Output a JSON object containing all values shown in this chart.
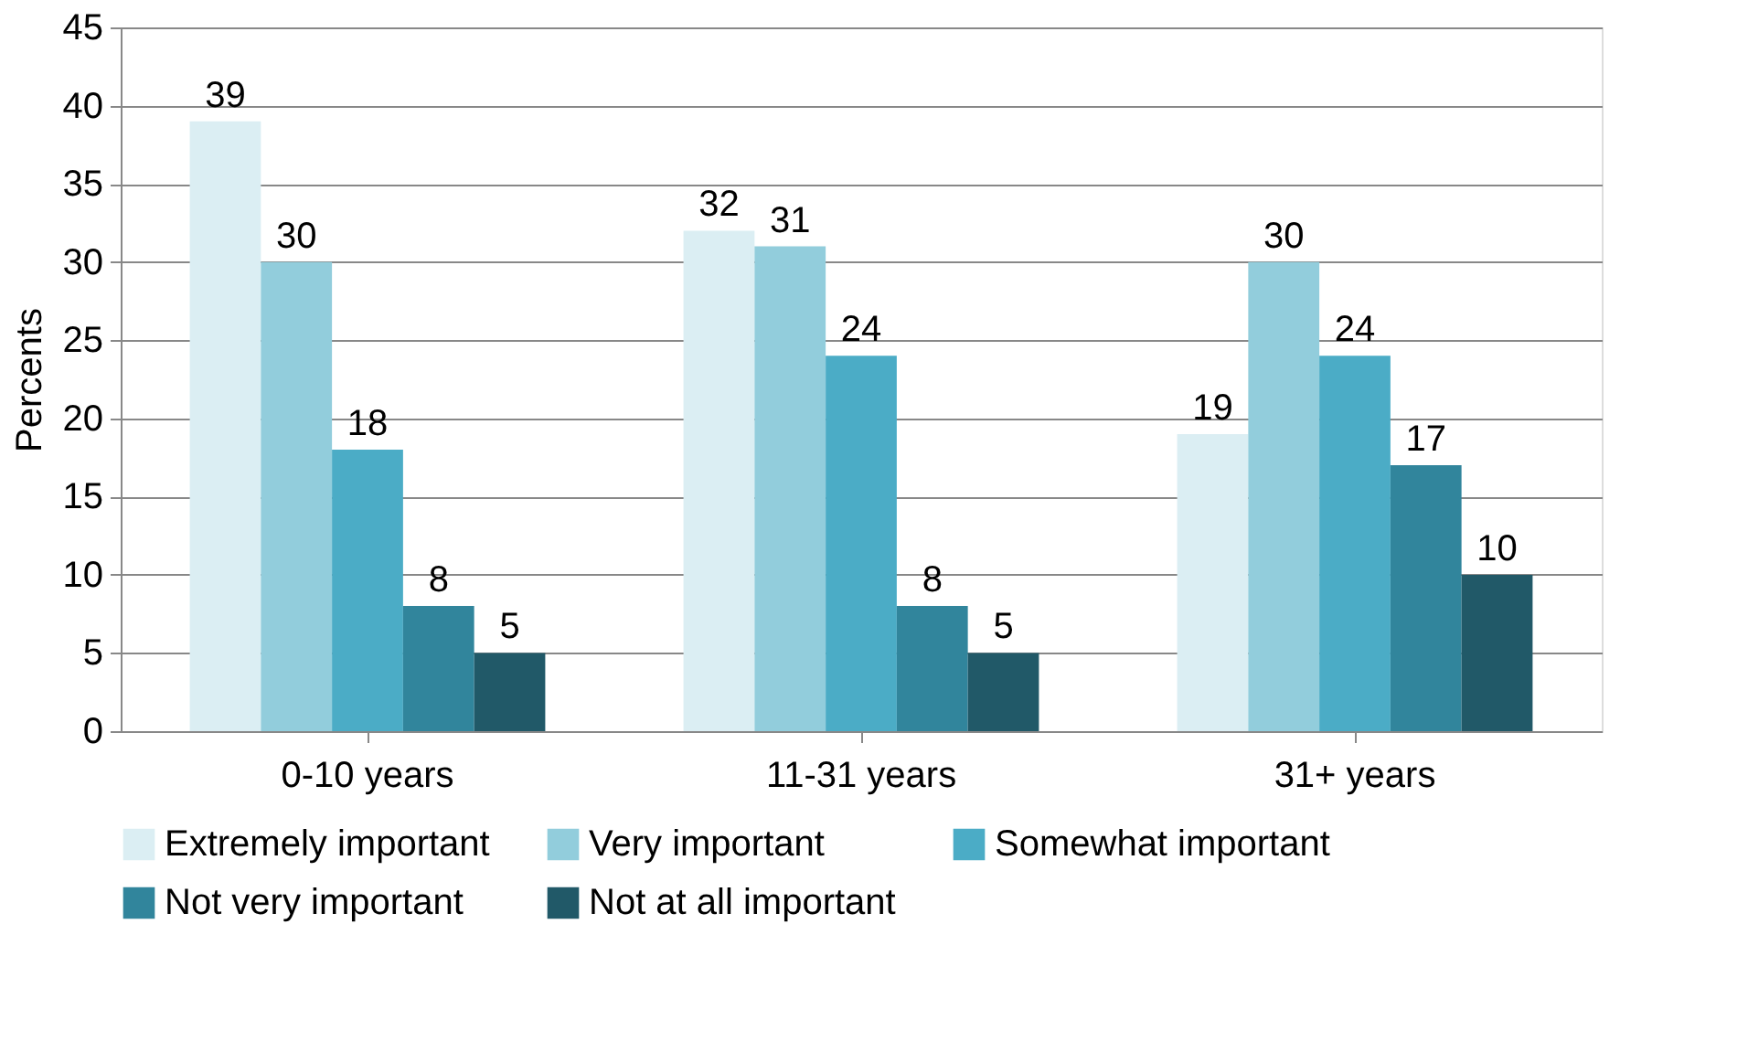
{
  "chart_data": {
    "type": "bar",
    "ylabel": "Percents",
    "categories": [
      "0-10 years",
      "11-31 years",
      "31+ years"
    ],
    "series": [
      {
        "name": "Extremely important",
        "color": "#dbeef3",
        "values": [
          39,
          32,
          19
        ]
      },
      {
        "name": "Very important",
        "color": "#92cddc",
        "values": [
          30,
          31,
          30
        ]
      },
      {
        "name": "Somewhat important",
        "color": "#4bacc6",
        "values": [
          18,
          24,
          24
        ]
      },
      {
        "name": "Not very important",
        "color": "#31859c",
        "values": [
          8,
          8,
          17
        ]
      },
      {
        "name": "Not at all important",
        "color": "#215968",
        "values": [
          5,
          5,
          10
        ]
      }
    ],
    "ylim": [
      0,
      45
    ],
    "yticks": [
      0,
      5,
      10,
      15,
      20,
      25,
      30,
      35,
      40,
      45
    ],
    "grid": "y",
    "legend": "bottom",
    "data_labels": true
  }
}
